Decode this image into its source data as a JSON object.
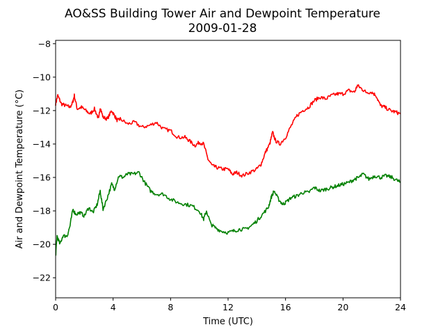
{
  "chart_data": {
    "type": "line",
    "title": "AO&SS Building Tower Air and Dewpoint Temperature",
    "subtitle": "2009-01-28",
    "xlabel": "Time (UTC)",
    "ylabel": "Air and Dewpoint Temperature (°C)",
    "xlim": [
      0,
      24
    ],
    "ylim": [
      -23.2,
      -7.8
    ],
    "xticks": [
      0,
      4,
      8,
      12,
      16,
      20,
      24
    ],
    "yticks": [
      -8,
      -10,
      -12,
      -14,
      -16,
      -18,
      -20,
      -22
    ],
    "ytick_labels": [
      "−8",
      "−10",
      "−12",
      "−14",
      "−16",
      "−18",
      "−20",
      "−22"
    ],
    "grid": false,
    "series": [
      {
        "color": "#ff0000",
        "x": [
          0,
          0.15,
          0.4,
          0.7,
          1.0,
          1.2,
          1.3,
          1.5,
          1.8,
          2.1,
          2.4,
          2.7,
          3.0,
          3.1,
          3.3,
          3.6,
          3.9,
          4.1,
          4.3,
          4.5,
          5.0,
          5.5,
          6.0,
          6.5,
          7.0,
          7.5,
          8.0,
          8.5,
          9.0,
          9.3,
          9.7,
          10.0,
          10.3,
          10.6,
          10.9,
          11.2,
          11.6,
          12.0,
          12.3,
          12.6,
          13.0,
          13.5,
          14.0,
          14.3,
          14.6,
          14.9,
          15.1,
          15.3,
          15.6,
          16.0,
          16.4,
          16.8,
          17.2,
          17.6,
          18.0,
          18.4,
          18.8,
          19.2,
          19.6,
          20.0,
          20.4,
          20.8,
          21.0,
          21.3,
          21.6,
          22.0,
          22.3,
          22.6,
          22.9,
          23.3,
          23.7,
          24.0
        ],
        "values": [
          -11.6,
          -11.1,
          -11.6,
          -11.7,
          -11.8,
          -11.5,
          -11.1,
          -11.9,
          -11.8,
          -12.0,
          -12.2,
          -11.9,
          -12.5,
          -11.8,
          -12.4,
          -12.5,
          -12.0,
          -12.3,
          -12.6,
          -12.5,
          -12.8,
          -12.7,
          -13.0,
          -12.9,
          -12.7,
          -13.1,
          -13.2,
          -13.6,
          -13.6,
          -13.8,
          -14.1,
          -13.9,
          -14.0,
          -14.9,
          -15.3,
          -15.4,
          -15.5,
          -15.5,
          -15.8,
          -15.7,
          -15.9,
          -15.7,
          -15.5,
          -15.2,
          -14.5,
          -14.0,
          -13.3,
          -13.8,
          -14.0,
          -13.6,
          -12.9,
          -12.3,
          -12.0,
          -11.8,
          -11.4,
          -11.2,
          -11.3,
          -11.1,
          -11.0,
          -11.0,
          -10.8,
          -10.9,
          -10.5,
          -10.7,
          -10.9,
          -10.9,
          -11.1,
          -11.7,
          -11.8,
          -12.0,
          -12.1,
          -12.2
        ]
      },
      {
        "color": "#008000",
        "x": [
          0,
          0.1,
          0.3,
          0.5,
          0.8,
          1.0,
          1.2,
          1.4,
          1.7,
          2.0,
          2.3,
          2.6,
          2.9,
          3.1,
          3.3,
          3.6,
          3.9,
          4.1,
          4.4,
          4.7,
          5.0,
          5.4,
          5.8,
          6.2,
          6.6,
          7.0,
          7.5,
          8.0,
          8.5,
          9.0,
          9.5,
          10.0,
          10.3,
          10.5,
          10.8,
          11.1,
          11.5,
          12.0,
          12.4,
          12.8,
          13.2,
          13.6,
          14.0,
          14.4,
          14.8,
          15.0,
          15.2,
          15.5,
          15.8,
          16.0,
          16.4,
          16.8,
          17.2,
          17.6,
          18.0,
          18.4,
          18.8,
          19.2,
          19.6,
          20.0,
          20.4,
          20.8,
          21.1,
          21.4,
          21.8,
          22.2,
          22.6,
          23.0,
          23.4,
          23.8,
          24.0
        ],
        "values": [
          -20.7,
          -19.5,
          -20.0,
          -19.5,
          -19.5,
          -18.9,
          -17.9,
          -18.2,
          -18.1,
          -18.3,
          -17.8,
          -18.1,
          -17.6,
          -16.8,
          -17.9,
          -17.2,
          -16.4,
          -16.7,
          -15.9,
          -16.0,
          -15.8,
          -15.8,
          -15.7,
          -16.3,
          -16.8,
          -17.0,
          -17.0,
          -17.3,
          -17.5,
          -17.6,
          -17.7,
          -18.0,
          -18.5,
          -18.0,
          -18.8,
          -19.0,
          -19.2,
          -19.3,
          -19.2,
          -19.1,
          -19.1,
          -18.9,
          -18.6,
          -18.2,
          -17.8,
          -17.2,
          -16.8,
          -17.3,
          -17.6,
          -17.5,
          -17.2,
          -17.1,
          -16.9,
          -16.9,
          -16.6,
          -16.8,
          -16.7,
          -16.6,
          -16.5,
          -16.4,
          -16.3,
          -16.1,
          -16.0,
          -15.8,
          -16.1,
          -15.9,
          -16.0,
          -15.9,
          -16.0,
          -16.2,
          -16.3
        ]
      }
    ]
  }
}
